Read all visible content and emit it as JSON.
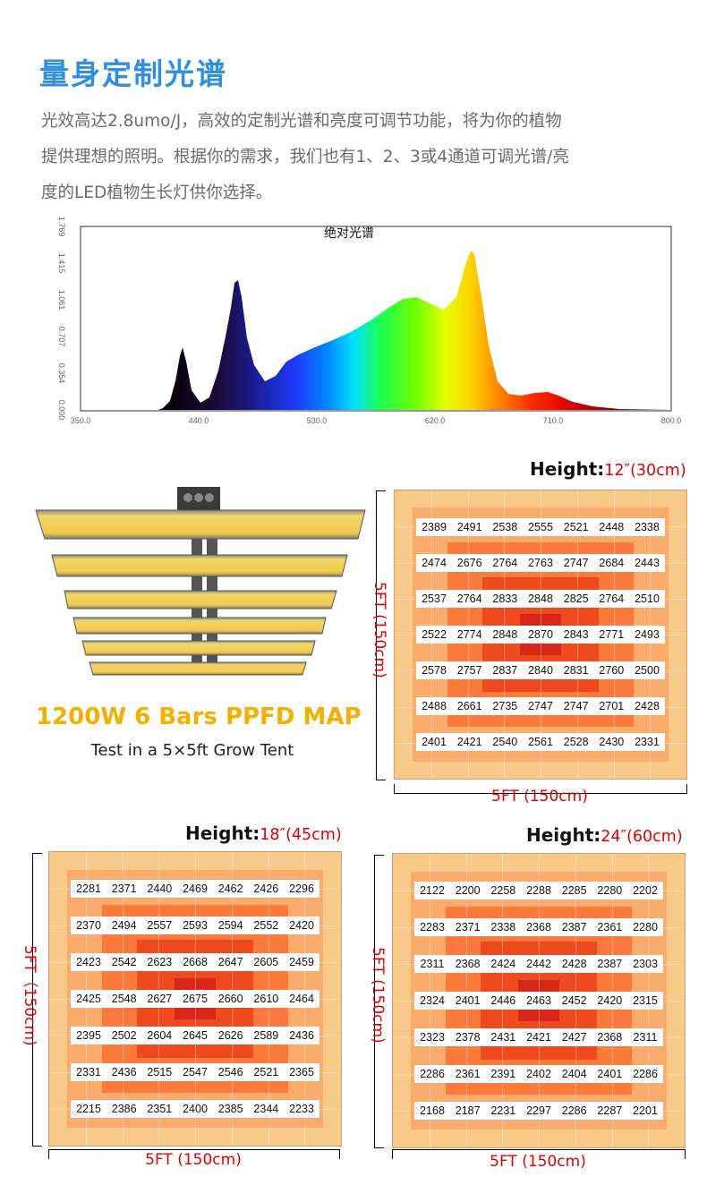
{
  "header": {
    "title": "量身定制光谱",
    "intro_lines": [
      "光效高达2.8umo/J，高效的定制光谱和亮度可调节功能，将为你的植物",
      "提供理想的照明。根据你的需求，我们也有1、2、3或4通道可调光谱/亮",
      "度的LED植物生长灯供你选择。"
    ]
  },
  "spectrum": {
    "title": "绝对光谱",
    "x_ticks": [
      "350.0",
      "440.0",
      "530.0",
      "620.0",
      "710.0",
      "800.0"
    ],
    "y_ticks": [
      "0.000",
      "0.354",
      "0.707",
      "1.061",
      "1.415",
      "1.769"
    ]
  },
  "product": {
    "title": "1200W 6 Bars PPFD MAP",
    "subtitle": "Test in a 5×5ft Grow Tent"
  },
  "colors": {
    "accent_blue": "#2f8fe0",
    "title_gold": "#f4b000",
    "label_red": "#e00000",
    "zone_outer": "#f9c98a",
    "zone_2": "#fbab6c",
    "zone_3": "#fb7a3c",
    "zone_4": "#ef4a1e",
    "zone_center": "#d8261b"
  },
  "maps": [
    {
      "id": "h30",
      "height_label": "Height:",
      "height_value": "12″(30cm)",
      "side_label": "5FT  (150cm)",
      "bottom_label": "5FT (150cm)",
      "rows": [
        [
          "2389",
          "2491",
          "2538",
          "2555",
          "2521",
          "2448",
          "2338"
        ],
        [
          "2474",
          "2676",
          "2764",
          "2763",
          "2747",
          "2684",
          "2443"
        ],
        [
          "2537",
          "2764",
          "2833",
          "2848",
          "2825",
          "2764",
          "2510"
        ],
        [
          "2522",
          "2774",
          "2848",
          "2870",
          "2843",
          "2771",
          "2493"
        ],
        [
          "2578",
          "2757",
          "2837",
          "2840",
          "2831",
          "2760",
          "2500"
        ],
        [
          "2488",
          "2661",
          "2735",
          "2747",
          "2747",
          "2701",
          "2428"
        ],
        [
          "2401",
          "2421",
          "2540",
          "2561",
          "2528",
          "2430",
          "2331"
        ]
      ]
    },
    {
      "id": "h45",
      "height_label": "Height:",
      "height_value": "18″(45cm)",
      "side_label": "5FT（150cm)",
      "bottom_label": "5FT (150cm)",
      "rows": [
        [
          "2281",
          "2371",
          "2440",
          "2469",
          "2462",
          "2426",
          "2296"
        ],
        [
          "2370",
          "2494",
          "2557",
          "2593",
          "2594",
          "2552",
          "2420"
        ],
        [
          "2423",
          "2542",
          "2623",
          "2668",
          "2647",
          "2605",
          "2459"
        ],
        [
          "2425",
          "2548",
          "2627",
          "2675",
          "2660",
          "2610",
          "2464"
        ],
        [
          "2395",
          "2502",
          "2604",
          "2645",
          "2626",
          "2589",
          "2436"
        ],
        [
          "2331",
          "2436",
          "2515",
          "2547",
          "2546",
          "2521",
          "2365"
        ],
        [
          "2215",
          "2386",
          "2351",
          "2400",
          "2385",
          "2344",
          "2233"
        ]
      ]
    },
    {
      "id": "h60",
      "height_label": "Height:",
      "height_value": "24″(60cm)",
      "side_label": "5FT  (150cm)",
      "bottom_label": "5FT (150cm)",
      "rows": [
        [
          "2122",
          "2200",
          "2258",
          "2288",
          "2285",
          "2280",
          "2202"
        ],
        [
          "2283",
          "2371",
          "2338",
          "2368",
          "2387",
          "2361",
          "2280"
        ],
        [
          "2311",
          "2368",
          "2424",
          "2442",
          "2428",
          "2387",
          "2303"
        ],
        [
          "2324",
          "2401",
          "2446",
          "2463",
          "2452",
          "2420",
          "2315"
        ],
        [
          "2323",
          "2378",
          "2431",
          "2421",
          "2427",
          "2368",
          "2311"
        ],
        [
          "2286",
          "2361",
          "2391",
          "2402",
          "2404",
          "2401",
          "2286"
        ],
        [
          "2168",
          "2187",
          "2231",
          "2297",
          "2286",
          "2287",
          "2201"
        ]
      ]
    }
  ]
}
